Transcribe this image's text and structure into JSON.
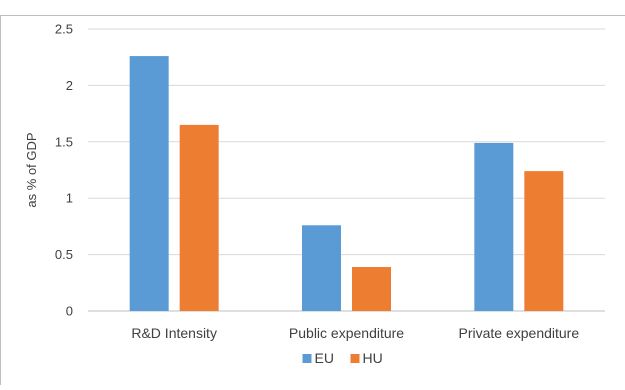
{
  "chart_data": {
    "type": "bar",
    "categories": [
      "R&D Intensity",
      "Public expenditure",
      "Private expenditure"
    ],
    "series": [
      {
        "name": "EU",
        "values": [
          2.26,
          0.76,
          1.49
        ],
        "color": "#5b9bd5"
      },
      {
        "name": "HU",
        "values": [
          1.65,
          0.39,
          1.24
        ],
        "color": "#ed7d31"
      }
    ],
    "ylabel": "as % of GDP",
    "xlabel": "",
    "ylim": [
      0,
      2.5
    ],
    "yticks": [
      "0",
      "0.5",
      "1",
      "1.5",
      "2",
      "2.5"
    ],
    "grid": true,
    "legend": "bottom-center"
  }
}
